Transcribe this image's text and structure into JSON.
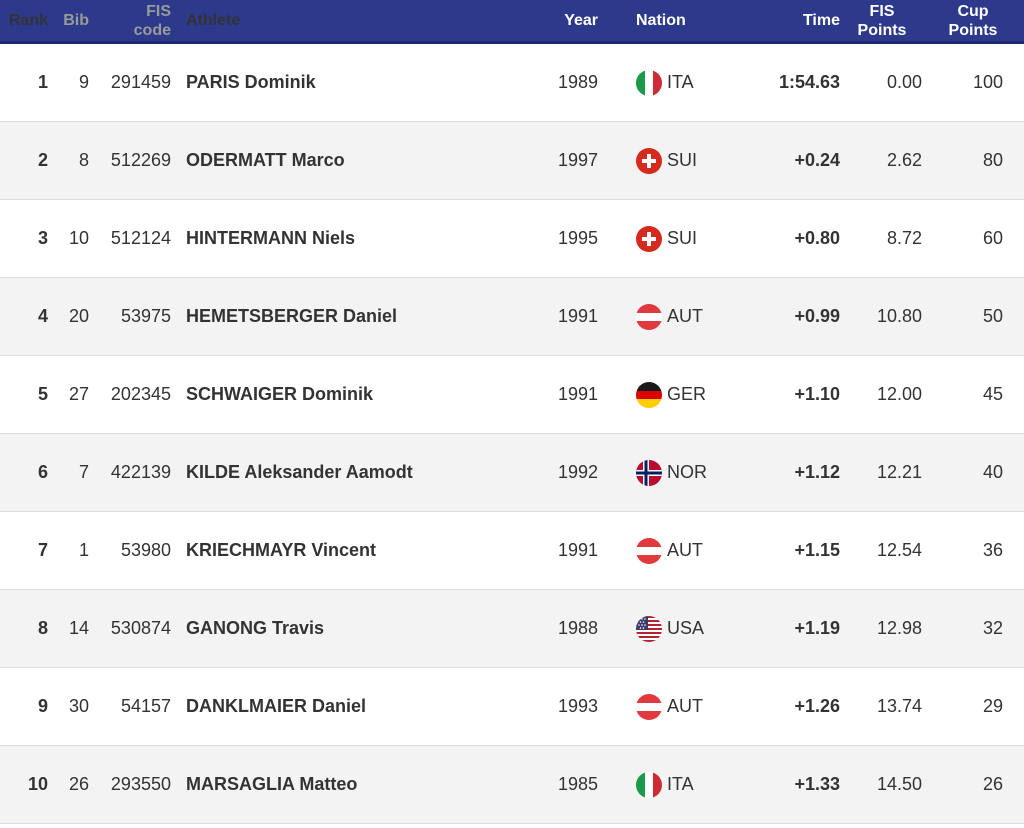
{
  "header": {
    "rank": "Rank",
    "bib": "Bib",
    "fis_code_line1": "FIS",
    "fis_code_line2": "code",
    "athlete": "Athlete",
    "year": "Year",
    "nation": "Nation",
    "time": "Time",
    "fis_points_line1": "FIS",
    "fis_points_line2": "Points",
    "cup_points_line1": "Cup",
    "cup_points_line2": "Points"
  },
  "rows": [
    {
      "rank": "1",
      "bib": "9",
      "code": "291459",
      "athlete": "PARIS Dominik",
      "year": "1989",
      "flag": "ita-flag-icon",
      "nation": "ITA",
      "time": "1:54.63",
      "fis_points": "0.00",
      "cup_points": "100"
    },
    {
      "rank": "2",
      "bib": "8",
      "code": "512269",
      "athlete": "ODERMATT Marco",
      "year": "1997",
      "flag": "sui-flag-icon",
      "nation": "SUI",
      "time": "+0.24",
      "fis_points": "2.62",
      "cup_points": "80"
    },
    {
      "rank": "3",
      "bib": "10",
      "code": "512124",
      "athlete": "HINTERMANN Niels",
      "year": "1995",
      "flag": "sui-flag-icon",
      "nation": "SUI",
      "time": "+0.80",
      "fis_points": "8.72",
      "cup_points": "60"
    },
    {
      "rank": "4",
      "bib": "20",
      "code": "53975",
      "athlete": "HEMETSBERGER Daniel",
      "year": "1991",
      "flag": "aut-flag-icon",
      "nation": "AUT",
      "time": "+0.99",
      "fis_points": "10.80",
      "cup_points": "50"
    },
    {
      "rank": "5",
      "bib": "27",
      "code": "202345",
      "athlete": "SCHWAIGER Dominik",
      "year": "1991",
      "flag": "ger-flag-icon",
      "nation": "GER",
      "time": "+1.10",
      "fis_points": "12.00",
      "cup_points": "45"
    },
    {
      "rank": "6",
      "bib": "7",
      "code": "422139",
      "athlete": "KILDE Aleksander Aamodt",
      "year": "1992",
      "flag": "nor-flag-icon",
      "nation": "NOR",
      "time": "+1.12",
      "fis_points": "12.21",
      "cup_points": "40"
    },
    {
      "rank": "7",
      "bib": "1",
      "code": "53980",
      "athlete": "KRIECHMAYR Vincent",
      "year": "1991",
      "flag": "aut-flag-icon",
      "nation": "AUT",
      "time": "+1.15",
      "fis_points": "12.54",
      "cup_points": "36"
    },
    {
      "rank": "8",
      "bib": "14",
      "code": "530874",
      "athlete": "GANONG Travis",
      "year": "1988",
      "flag": "usa-flag-icon",
      "nation": "USA",
      "time": "+1.19",
      "fis_points": "12.98",
      "cup_points": "32"
    },
    {
      "rank": "9",
      "bib": "30",
      "code": "54157",
      "athlete": "DANKLMAIER Daniel",
      "year": "1993",
      "flag": "aut-flag-icon",
      "nation": "AUT",
      "time": "+1.26",
      "fis_points": "13.74",
      "cup_points": "29"
    },
    {
      "rank": "10",
      "bib": "26",
      "code": "293550",
      "athlete": "MARSAGLIA Matteo",
      "year": "1985",
      "flag": "ita-flag-icon",
      "nation": "ITA",
      "time": "+1.33",
      "fis_points": "14.50",
      "cup_points": "26"
    }
  ],
  "colors": {
    "header_bg": "#2d3a8c",
    "alt_row": "#f3f3f3",
    "text": "#333333",
    "muted": "#9a9a9a"
  }
}
